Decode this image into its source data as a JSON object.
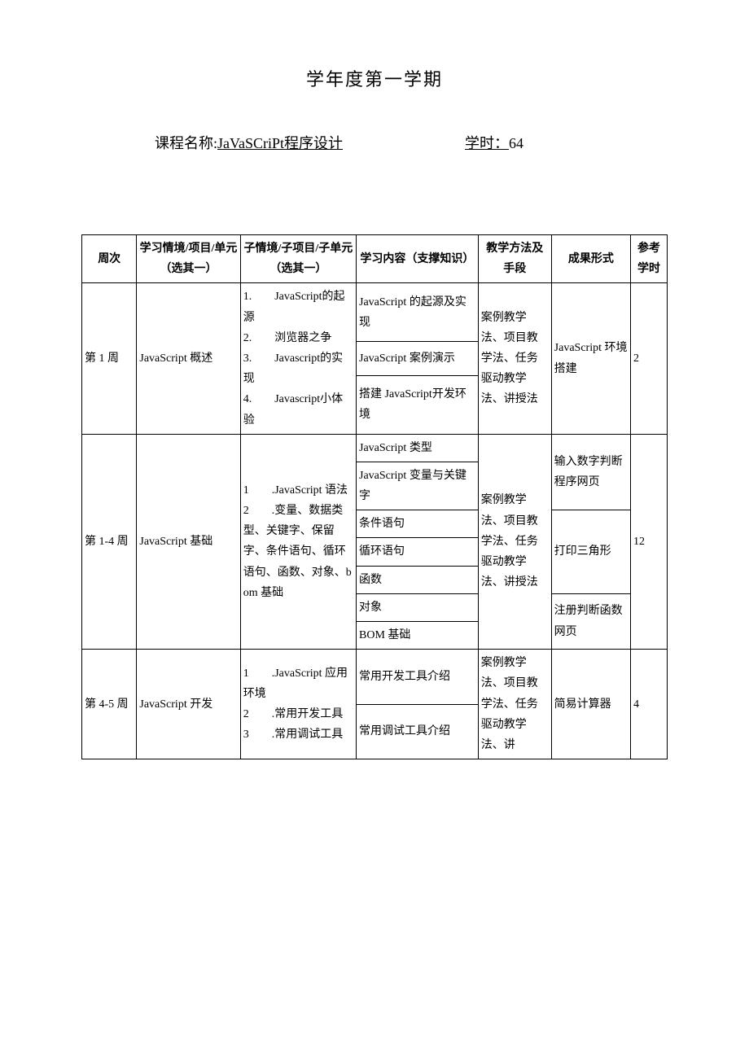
{
  "heading": "学年度第一学期",
  "course_label": "课程名称",
  "course_name": "JaVaSCriPt程序设计",
  "hours_label": "学时：",
  "hours_value": "64",
  "table": {
    "columns": [
      "周次",
      "学习情境/项目/单元（选其一）",
      "子情境/子项目/子单元（选其一）",
      "学习内容（支撑知识）",
      "教学方法及手段",
      "成果形式",
      "参考学时"
    ],
    "rows": [
      {
        "week": "第 1 周",
        "unit": "JavaScript 概述",
        "sub": "1.　　JavaScript的起源\n2.　　浏览器之争\n3.　　Javascript的实现\n4.　　Javascript小体验",
        "contents": [
          "JavaScript 的起源及实现",
          "JavaScript 案例演示",
          "搭建 JavaScript开发环境"
        ],
        "method": "案例教学法、项目教学法、任务驱动教学法、讲授法",
        "outcome": "JavaScript 环境搭建",
        "hours": "2"
      },
      {
        "week": "第 1-4 周",
        "unit": "JavaScript 基础",
        "sub": "1　　.JavaScript 语法\n2　　.变量、数据类型、关键字、保留字、条件语句、循环语句、函数、对象、bom 基础",
        "contents": [
          "JavaScript 类型",
          "JavaScript 变量与关键字",
          "条件语句",
          "循环语句",
          "函数",
          "对象",
          "BOM 基础"
        ],
        "method": "案例教学法、项目教学法、任务驱动教学法、讲授法",
        "outcomes": [
          "输入数字判断程序网页",
          "打印三角形",
          "注册判断函数网页"
        ],
        "hours": "12"
      },
      {
        "week": "第 4-5 周",
        "unit": "JavaScript 开发",
        "sub": "1　　.JavaScript 应用环境\n2　　.常用开发工具\n3　　.常用调试工具",
        "contents": [
          "常用开发工具介绍",
          "常用调试工具介绍"
        ],
        "method": "案例教学法、项目教学法、任务驱动教学法、讲",
        "outcome": "简易计算器",
        "hours": "4"
      }
    ],
    "colors": {
      "text": "#000000",
      "background": "#ffffff",
      "border": "#000000"
    },
    "font": {
      "family": "SimSun",
      "title_size_pt": 16,
      "body_size_pt": 10.5
    },
    "col_widths_pct": [
      9,
      17,
      19,
      20,
      12,
      13,
      6
    ]
  }
}
